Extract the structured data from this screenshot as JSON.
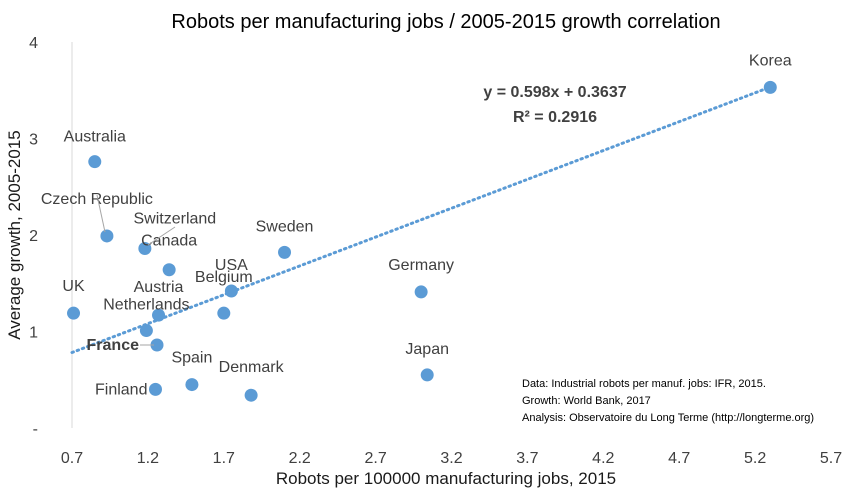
{
  "chart_data": {
    "type": "scatter",
    "title": "Robots per manufacturing jobs / 2005-2015 growth correlation",
    "xlabel": "Robots per 100000 manufacturing jobs, 2015",
    "ylabel": "Average growth, 2005-2015",
    "xlim": [
      0.7,
      5.7
    ],
    "ylim": [
      0,
      4
    ],
    "x_ticks": [
      "0.7",
      "1.2",
      "1.7",
      "2.2",
      "2.7",
      "3.2",
      "3.7",
      "4.2",
      "4.7",
      "5.2",
      "5.7"
    ],
    "y_ticks": [
      "-",
      "1",
      "2",
      "3",
      "4"
    ],
    "points": [
      {
        "label": "Korea",
        "x": 5.3,
        "y": 3.53
      },
      {
        "label": "Australia",
        "x": 0.85,
        "y": 2.76
      },
      {
        "label": "Czech Republic",
        "x": 0.93,
        "y": 1.99
      },
      {
        "label": "Switzerland",
        "x": 1.18,
        "y": 1.86
      },
      {
        "label": "Canada",
        "x": 1.34,
        "y": 1.64
      },
      {
        "label": "Sweden",
        "x": 2.1,
        "y": 1.82
      },
      {
        "label": "USA",
        "x": 1.75,
        "y": 1.42
      },
      {
        "label": "Germany",
        "x": 3.0,
        "y": 1.41
      },
      {
        "label": "UK",
        "x": 0.71,
        "y": 1.19
      },
      {
        "label": "Austria",
        "x": 1.27,
        "y": 1.17
      },
      {
        "label": "Belgium",
        "x": 1.7,
        "y": 1.19
      },
      {
        "label": "Netherlands",
        "x": 1.19,
        "y": 1.01
      },
      {
        "label": "France",
        "x": 1.26,
        "y": 0.86
      },
      {
        "label": "Spain",
        "x": 1.49,
        "y": 0.45
      },
      {
        "label": "Japan",
        "x": 3.04,
        "y": 0.55
      },
      {
        "label": "Denmark",
        "x": 1.88,
        "y": 0.34
      },
      {
        "label": "Finland",
        "x": 1.25,
        "y": 0.4
      }
    ],
    "trendline": {
      "type": "linear",
      "slope": 0.598,
      "intercept": 0.3637,
      "equation": "y = 0.598x + 0.3637",
      "r_squared": "R² = 0.2916",
      "color": "#5b9bd5"
    },
    "marker_color": "#5b9bd5",
    "notes": [
      "Data: Industrial robots per manuf. jobs: IFR, 2015.",
      "Growth: World Bank, 2017",
      "Analysis: Observatoire du Long Terme (http://longterme.org)"
    ]
  }
}
